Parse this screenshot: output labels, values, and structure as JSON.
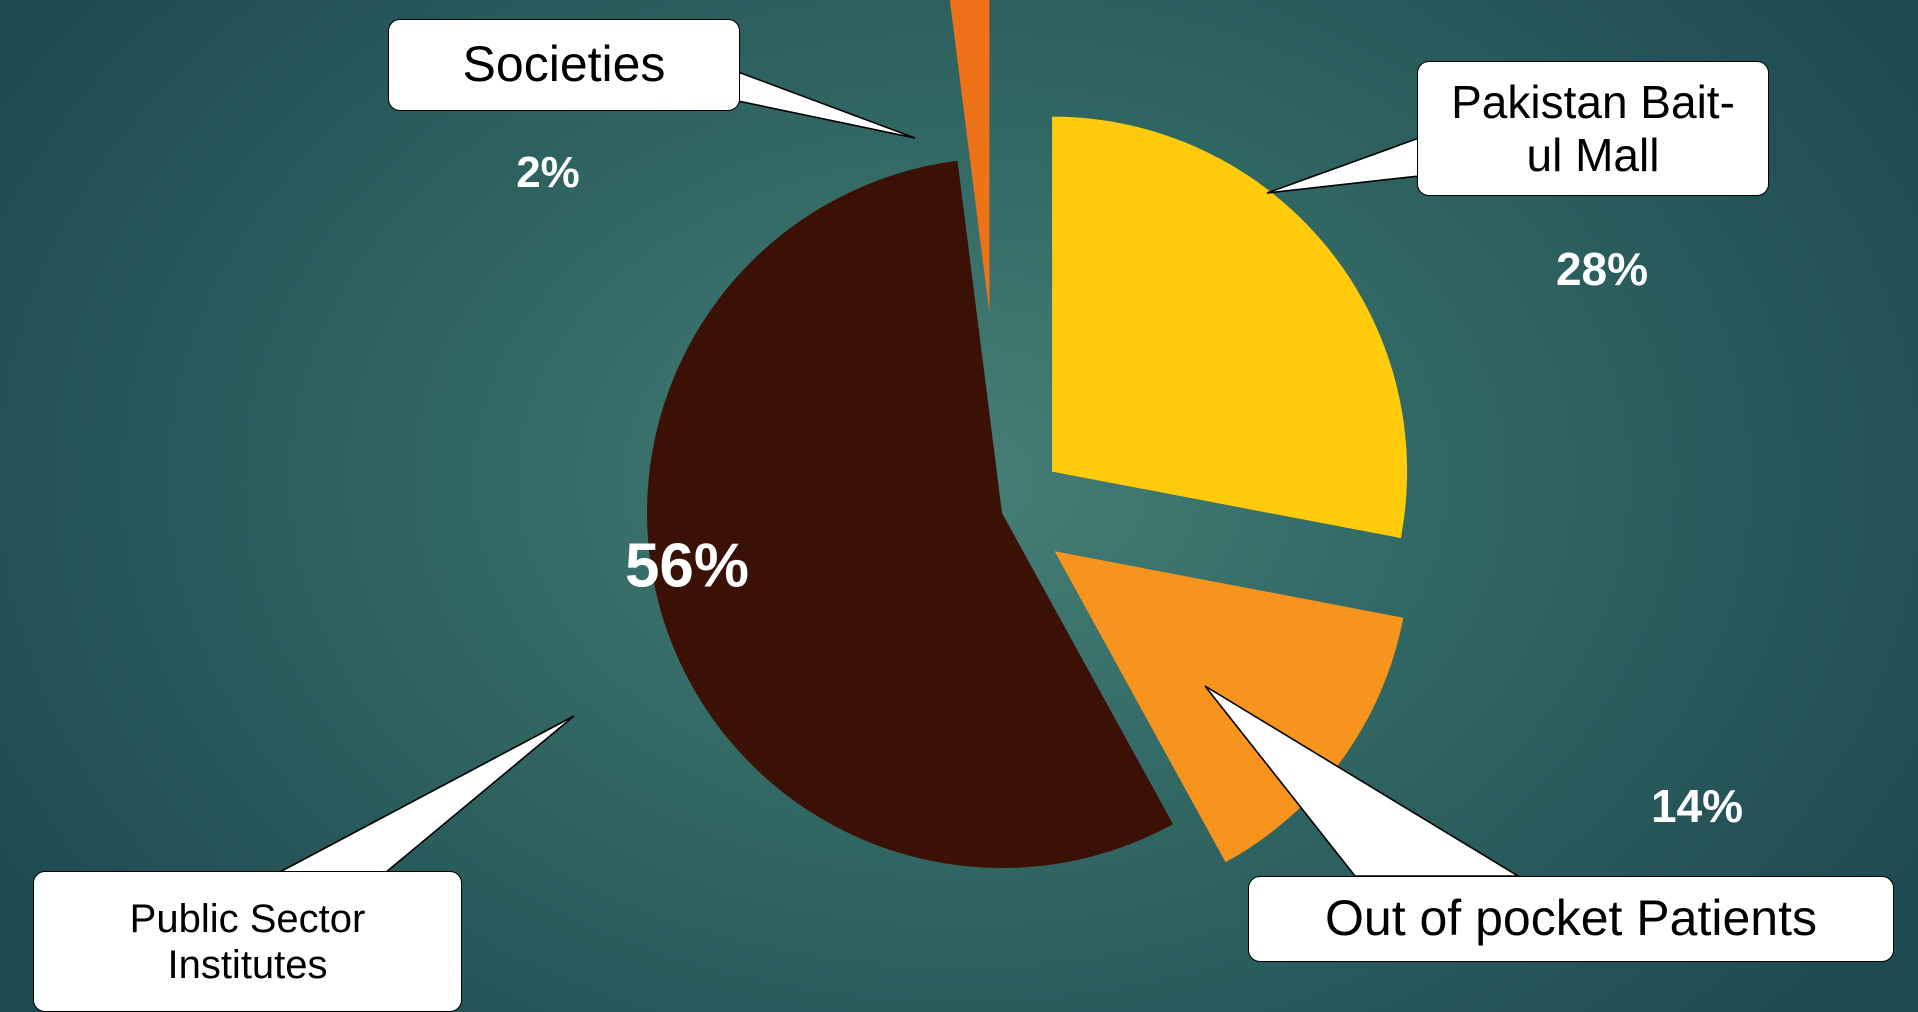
{
  "chart_data": {
    "type": "pie",
    "exploded": true,
    "slices": [
      {
        "name": "Pakistan Bait-ul Mall",
        "value": 28,
        "label": "28%",
        "color": "#ffcb0b"
      },
      {
        "name": "Out of pocket Patients",
        "value": 14,
        "label": "14%",
        "color": "#f7941d"
      },
      {
        "name": "Public Sector Institutes",
        "value": 56,
        "label": "56%",
        "color": "#3b1106"
      },
      {
        "name": "Societies",
        "value": 2,
        "label": "2%",
        "color": "#ee7217"
      }
    ],
    "legend": "none"
  },
  "colors": {
    "background_center": "#467f77",
    "background_edge": "#1f4a52",
    "callout_fill": "#ffffff",
    "callout_border": "#000000"
  }
}
